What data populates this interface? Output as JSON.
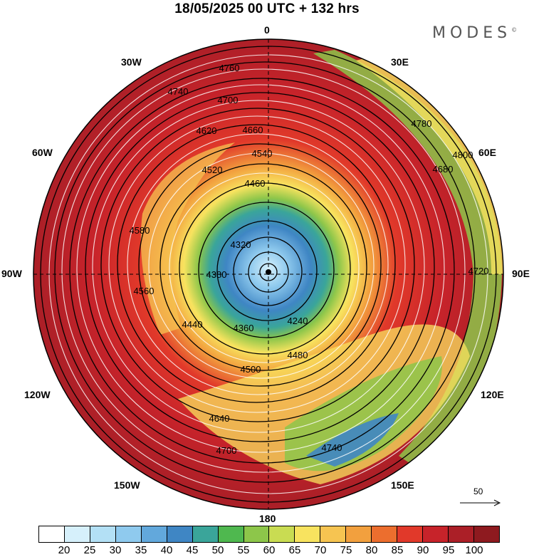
{
  "header": {
    "title": "18/05/2025  00 UTC  + 132 hrs",
    "brand": "MODES",
    "brand_mark": "©"
  },
  "longitude_labels": {
    "lon_0": "0",
    "lon_30e": "30E",
    "lon_60e": "60E",
    "lon_90e": "90E",
    "lon_120e": "120E",
    "lon_150e": "150E",
    "lon_180": "180",
    "lon_150w": "150W",
    "lon_120w": "120W",
    "lon_90w": "90W",
    "lon_60w": "60W",
    "lon_30w": "30W"
  },
  "contour_labels": [
    "4760",
    "4740",
    "4700",
    "4660",
    "4620",
    "4540",
    "4460",
    "4380",
    "4320",
    "4360",
    "4240",
    "4440",
    "4480",
    "4500",
    "4520",
    "4580",
    "4640",
    "4680",
    "4720",
    "4780",
    "4800",
    "4560",
    "4740",
    "4700"
  ],
  "reference_vector": {
    "label": "50"
  },
  "colorbar": {
    "colors": [
      "#ffffff",
      "#d6f0fb",
      "#b3e0f5",
      "#8fcaee",
      "#62a8dc",
      "#3f86c4",
      "#3aa59a",
      "#4fb84f",
      "#8dc64a",
      "#c9dc52",
      "#f8e35f",
      "#f6c451",
      "#f2a03e",
      "#ec6e2e",
      "#e1392a",
      "#c7232a",
      "#ab1f27",
      "#8e1a1f"
    ],
    "ticks": [
      "20",
      "25",
      "30",
      "35",
      "40",
      "45",
      "50",
      "55",
      "60",
      "65",
      "70",
      "75",
      "80",
      "85",
      "90",
      "95",
      "100"
    ]
  }
}
